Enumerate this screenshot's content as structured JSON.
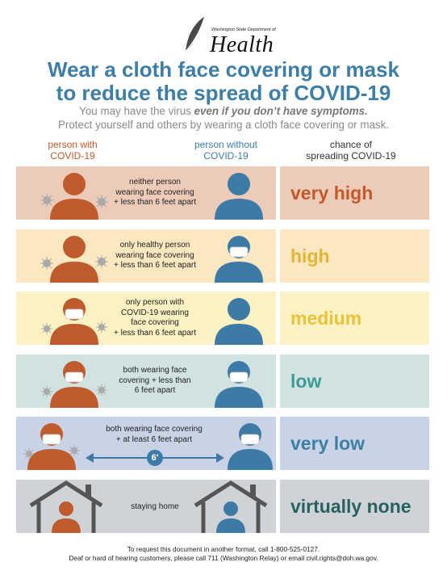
{
  "logo": {
    "department": "Washington State Department of",
    "name": "Health"
  },
  "title": {
    "line1": "Wear a cloth face covering or mask",
    "line2": "to reduce the spread of COVID-19"
  },
  "subtitle": {
    "line1_before": "You may have the virus ",
    "line1_emphasis": "even if you don’t have symptoms.",
    "line2": "Protect yourself and others by wearing a cloth face covering or mask."
  },
  "columns": {
    "col1_line1": "person with",
    "col1_line2": "COVID-19",
    "col2_line1": "person without",
    "col2_line2": "COVID-19",
    "col3_line1": "chance of",
    "col3_line2": "spreading COVID-19"
  },
  "colors": {
    "sick_person": "#bf5b2c",
    "healthy_person": "#3e7aa6",
    "title_blue": "#3d7ea6"
  },
  "rows": [
    {
      "desc": [
        "neither person",
        "wearing face covering",
        "+ less than 6 feet apart"
      ],
      "level": "very high",
      "level_color": "#c5582b"
    },
    {
      "desc": [
        "only healthy person",
        "wearing face covering",
        "+ less than 6 feet apart"
      ],
      "level": "high",
      "level_color": "#e4b534"
    },
    {
      "desc": [
        "only person with",
        "COVID-19 wearing",
        "face covering",
        "+ less than 6 feet apart"
      ],
      "level": "medium",
      "level_color": "#e9c33a"
    },
    {
      "desc": [
        "both wearing face",
        "covering + less than",
        "6 feet apart"
      ],
      "level": "low",
      "level_color": "#3c9b95"
    },
    {
      "desc": [
        "both wearing face covering",
        "+ at least 6 feet apart"
      ],
      "distance": "6'",
      "level": "very low",
      "level_color": "#3d7ea6"
    },
    {
      "desc": [
        "staying home"
      ],
      "level": "virtually none",
      "level_color": "#27615f"
    }
  ],
  "footer": {
    "line1": "To request this document in another format, call 1-800-525-0127.",
    "line2": "Deaf or hard of hearing customers, please call 711 (Washington Relay) or email civil.rights@doh.wa.gov."
  }
}
